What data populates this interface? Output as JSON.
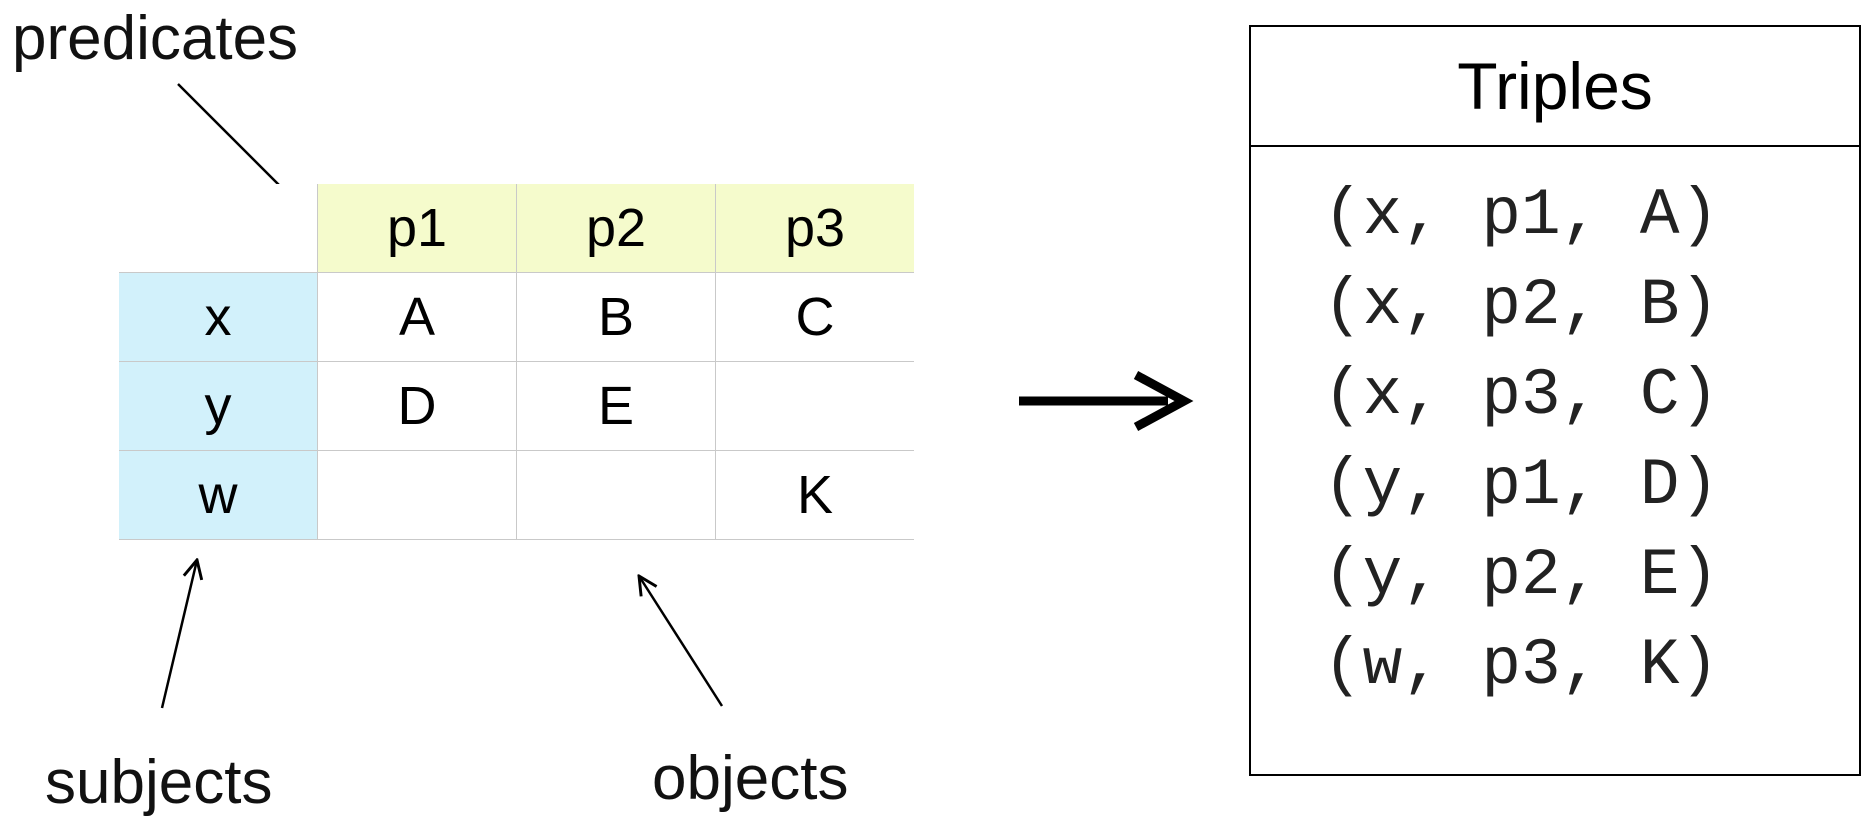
{
  "labels": {
    "predicates": "predicates",
    "subjects": "subjects",
    "objects": "objects"
  },
  "table": {
    "predicates": [
      "p1",
      "p2",
      "p3"
    ],
    "rows": [
      {
        "subject": "x",
        "cells": [
          "A",
          "B",
          "C"
        ]
      },
      {
        "subject": "y",
        "cells": [
          "D",
          "E",
          ""
        ]
      },
      {
        "subject": "w",
        "cells": [
          "",
          "",
          "K"
        ]
      }
    ]
  },
  "panel": {
    "title": "Triples",
    "triples": [
      "(x, p1, A)",
      "(x, p2, B)",
      "(x, p3, C)",
      "(y, p1, D)",
      "(y, p2, E)",
      "(w, p3, K)"
    ]
  },
  "colors": {
    "predicate_header_bg": "#f5fbcc",
    "subject_header_bg": "#d2f1fb",
    "grid_line": "#c9c9c9"
  }
}
